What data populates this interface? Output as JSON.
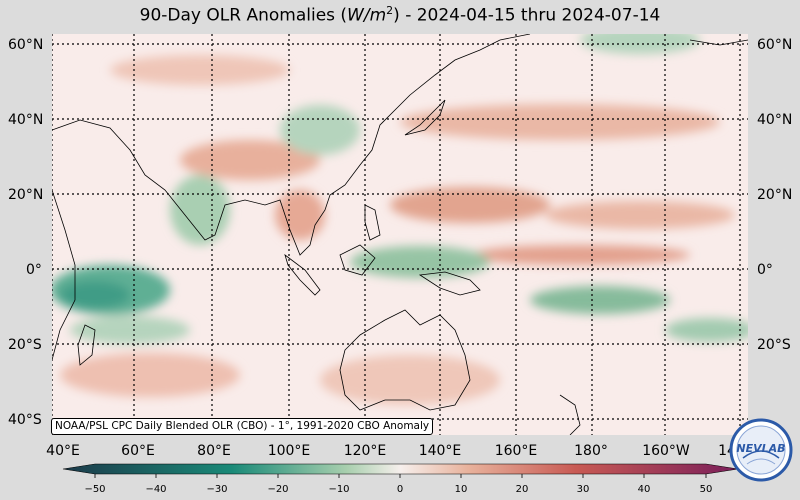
{
  "title": {
    "prefix": "90-Day OLR Anomalies (",
    "unit_base": "W/m",
    "unit_exp": "2",
    "suffix": ") - 2024-04-15 thru 2024-07-14"
  },
  "lat_labels": [
    "60°N",
    "40°N",
    "20°N",
    "0°",
    "20°S",
    "40°S"
  ],
  "lon_labels": [
    "40°E",
    "60°E",
    "80°E",
    "100°E",
    "120°E",
    "140°E",
    "160°E",
    "180°",
    "160°W",
    "14"
  ],
  "credit": "NOAA/PSL CPC Daily Blended OLR (CBO) - 1°, 1991-2020 CBO Anomaly",
  "colorbar": {
    "ticks": [
      "−50",
      "−40",
      "−30",
      "−20",
      "−10",
      "0",
      "10",
      "20",
      "30",
      "40",
      "50"
    ],
    "min": -55,
    "max": 55,
    "colors": {
      "neg_strong": "#1c3a4a",
      "neg_mid": "#1a8a78",
      "neg_light": "#a8cfae",
      "neutral": "#f6efec",
      "pos_light": "#e8b29c",
      "pos_mid": "#c85a54",
      "pos_strong": "#7a1e5a"
    }
  },
  "map": {
    "neutral_fill": "#f9ecea",
    "positive_fill": "#e2a48f",
    "negative_fill": "#96c4a4",
    "strong_negative_fill": "#3f9c86",
    "coast_color": "#000000",
    "grid_color": "#000000"
  },
  "logo": {
    "text": "NEVLAB",
    "ring_color": "#2c5aa8"
  }
}
